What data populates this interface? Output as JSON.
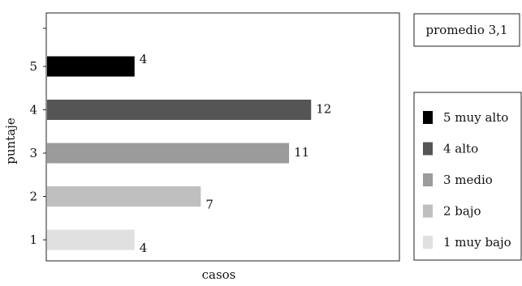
{
  "chart_data": {
    "type": "bar",
    "orientation": "horizontal",
    "xlabel": "casos",
    "ylabel": "puntaje",
    "categories": [
      "1",
      "2",
      "3",
      "4",
      "5"
    ],
    "values": [
      4,
      7,
      11,
      12,
      4
    ],
    "value_labels": [
      "4",
      "7",
      "11",
      "12",
      "4"
    ],
    "xlim": [
      0,
      16
    ],
    "grid": false,
    "legend": {
      "placement": "right",
      "entries": [
        {
          "label": "5 muy alto",
          "color": "#000000"
        },
        {
          "label": "4 alto",
          "color": "#555555"
        },
        {
          "label": "3 medio",
          "color": "#9b9b9b"
        },
        {
          "label": "2 bajo",
          "color": "#bfbfbf"
        },
        {
          "label": "1 muy bajo",
          "color": "#e0e0e0"
        }
      ]
    },
    "annotation": "promedio 3,1"
  }
}
